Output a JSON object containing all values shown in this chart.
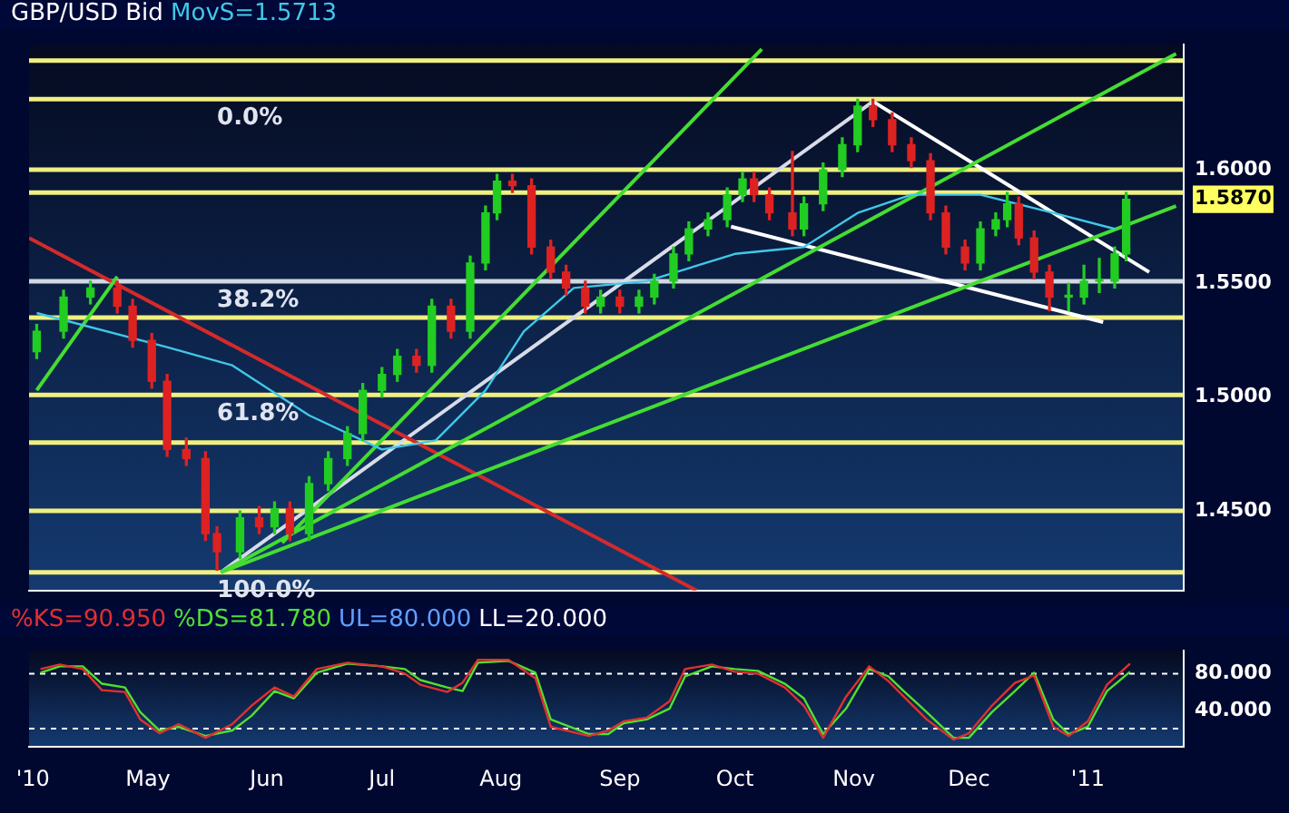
{
  "chart_data": [
    {
      "type": "candlestick",
      "title": "GBP/USD Bid",
      "legend": false,
      "tick_labels": "y",
      "x": [
        "2010-04-02",
        "2010-04-09",
        "2010-04-16",
        "2010-04-23",
        "2010-04-27",
        "2010-05-02",
        "2010-05-06",
        "2010-05-11",
        "2010-05-16",
        "2010-05-19",
        "2010-05-25",
        "2010-05-30",
        "2010-06-03",
        "2010-06-07",
        "2010-06-12",
        "2010-06-17",
        "2010-06-22",
        "2010-06-26",
        "2010-07-01",
        "2010-07-05",
        "2010-07-10",
        "2010-07-14",
        "2010-07-19",
        "2010-07-24",
        "2010-07-28",
        "2010-07-31",
        "2010-08-04",
        "2010-08-09",
        "2010-08-14",
        "2010-08-18",
        "2010-08-23",
        "2010-08-27",
        "2010-09-01",
        "2010-09-06",
        "2010-09-10",
        "2010-09-15",
        "2010-09-19",
        "2010-09-24",
        "2010-09-29",
        "2010-10-03",
        "2010-10-06",
        "2010-10-10",
        "2010-10-16",
        "2010-10-19",
        "2010-10-24",
        "2010-10-29",
        "2010-11-02",
        "2010-11-06",
        "2010-11-11",
        "2010-11-16",
        "2010-11-21",
        "2010-11-25",
        "2010-11-30",
        "2010-12-04",
        "2010-12-08",
        "2010-12-11",
        "2010-12-14",
        "2010-12-18",
        "2010-12-22",
        "2010-12-27",
        "2010-12-31",
        "2011-01-04",
        "2011-01-08",
        "2011-01-11"
      ],
      "ohlc": [
        [
          1.52,
          1.532,
          1.517,
          1.529
        ],
        [
          1.529,
          1.547,
          1.526,
          1.544
        ],
        [
          1.544,
          1.551,
          1.541,
          1.548
        ],
        [
          1.548,
          1.551,
          1.537,
          1.54
        ],
        [
          1.54,
          1.543,
          1.522,
          1.525
        ],
        [
          1.525,
          1.528,
          1.504,
          1.507
        ],
        [
          1.507,
          1.51,
          1.474,
          1.477
        ],
        [
          1.477,
          1.482,
          1.47,
          1.473
        ],
        [
          1.473,
          1.476,
          1.437,
          1.44
        ],
        [
          1.44,
          1.443,
          1.424,
          1.432
        ],
        [
          1.432,
          1.45,
          1.429,
          1.447
        ],
        [
          1.447,
          1.452,
          1.44,
          1.443
        ],
        [
          1.443,
          1.454,
          1.44,
          1.451
        ],
        [
          1.451,
          1.454,
          1.437,
          1.44
        ],
        [
          1.44,
          1.465,
          1.437,
          1.462
        ],
        [
          1.462,
          1.476,
          1.459,
          1.473
        ],
        [
          1.473,
          1.487,
          1.47,
          1.484
        ],
        [
          1.484,
          1.506,
          1.481,
          1.503
        ],
        [
          1.503,
          1.513,
          1.5,
          1.51
        ],
        [
          1.51,
          1.521,
          1.507,
          1.518
        ],
        [
          1.518,
          1.521,
          1.511,
          1.514
        ],
        [
          1.514,
          1.543,
          1.511,
          1.54
        ],
        [
          1.54,
          1.543,
          1.526,
          1.529
        ],
        [
          1.529,
          1.562,
          1.526,
          1.559
        ],
        [
          1.559,
          1.584,
          1.556,
          1.581
        ],
        [
          1.581,
          1.598,
          1.578,
          1.595
        ],
        [
          1.595,
          1.598,
          1.59,
          1.593
        ],
        [
          1.593,
          1.596,
          1.563,
          1.566
        ],
        [
          1.566,
          1.569,
          1.552,
          1.555
        ],
        [
          1.555,
          1.558,
          1.545,
          1.548
        ],
        [
          1.548,
          1.551,
          1.537,
          1.54
        ],
        [
          1.54,
          1.547,
          1.537,
          1.544
        ],
        [
          1.544,
          1.547,
          1.537,
          1.54
        ],
        [
          1.54,
          1.547,
          1.537,
          1.544
        ],
        [
          1.544,
          1.554,
          1.541,
          1.551
        ],
        [
          1.551,
          1.566,
          1.548,
          1.563
        ],
        [
          1.563,
          1.577,
          1.56,
          1.574
        ],
        [
          1.574,
          1.581,
          1.571,
          1.578
        ],
        [
          1.578,
          1.592,
          1.575,
          1.589
        ],
        [
          1.589,
          1.599,
          1.586,
          1.596
        ],
        [
          1.596,
          1.599,
          1.586,
          1.589
        ],
        [
          1.589,
          1.592,
          1.578,
          1.581
        ],
        [
          1.581,
          1.608,
          1.571,
          1.574
        ],
        [
          1.574,
          1.588,
          1.571,
          1.585
        ],
        [
          1.585,
          1.603,
          1.582,
          1.6
        ],
        [
          1.6,
          1.614,
          1.597,
          1.611
        ],
        [
          1.611,
          1.631,
          1.608,
          1.628
        ],
        [
          1.628,
          1.631,
          1.619,
          1.622
        ],
        [
          1.622,
          1.625,
          1.608,
          1.611
        ],
        [
          1.611,
          1.614,
          1.601,
          1.604
        ],
        [
          1.604,
          1.607,
          1.578,
          1.581
        ],
        [
          1.581,
          1.584,
          1.563,
          1.566
        ],
        [
          1.566,
          1.569,
          1.556,
          1.559
        ],
        [
          1.559,
          1.577,
          1.556,
          1.574
        ],
        [
          1.574,
          1.581,
          1.571,
          1.578
        ],
        [
          1.578,
          1.59,
          1.575,
          1.585
        ],
        [
          1.585,
          1.588,
          1.567,
          1.57
        ],
        [
          1.57,
          1.573,
          1.552,
          1.555
        ],
        [
          1.555,
          1.558,
          1.538,
          1.544
        ],
        [
          1.544,
          1.55,
          1.538,
          1.544
        ],
        [
          1.544,
          1.558,
          1.541,
          1.551
        ],
        [
          1.551,
          1.561,
          1.546,
          1.551
        ],
        [
          1.551,
          1.566,
          1.548,
          1.563
        ],
        [
          1.563,
          1.59,
          1.56,
          1.587
        ]
      ],
      "series": [
        {
          "name": "MovS=1.5713",
          "type": "line",
          "color": "#40c8e8",
          "x": [
            "2010-04-02",
            "2010-05-06",
            "2010-05-23",
            "2010-06-12",
            "2010-07-01",
            "2010-07-15",
            "2010-07-28",
            "2010-08-07",
            "2010-08-20",
            "2010-09-08",
            "2010-10-01",
            "2010-10-19",
            "2010-11-02",
            "2010-11-16",
            "2010-12-04",
            "2010-12-23",
            "2011-01-08"
          ],
          "values": [
            1.537,
            1.522,
            1.514,
            1.492,
            1.477,
            1.481,
            1.503,
            1.529,
            1.548,
            1.551,
            1.563,
            1.566,
            1.581,
            1.589,
            1.589,
            1.581,
            1.574
          ]
        },
        {
          "type": "line",
          "color": "#44dd33",
          "x": [
            "2010-04-02",
            "2010-04-23"
          ],
          "values": [
            1.503,
            1.553
          ]
        },
        {
          "type": "line",
          "color": "#44dd33",
          "x": [
            "2010-06-05",
            "2010-10-08"
          ],
          "values": [
            1.436,
            1.653
          ]
        },
        {
          "type": "line",
          "color": "#44dd33",
          "x": [
            "2010-05-20",
            "2011-01-24"
          ],
          "values": [
            1.423,
            1.651
          ]
        },
        {
          "type": "line",
          "color": "#44dd33",
          "x": [
            "2010-05-20",
            "2011-01-24"
          ],
          "values": [
            1.423,
            1.584
          ]
        },
        {
          "type": "line",
          "color": "#d42a2a",
          "x": [
            "2010-03-31",
            "2010-09-21"
          ],
          "values": [
            1.57,
            1.415
          ]
        },
        {
          "type": "line",
          "color": "#d8dce8",
          "x": [
            "2010-05-20",
            "2010-11-06"
          ],
          "values": [
            1.423,
            1.63
          ]
        },
        {
          "type": "line",
          "color": "#ffffff",
          "x": [
            "2010-11-06",
            "2011-01-17"
          ],
          "values": [
            1.63,
            1.555
          ]
        },
        {
          "type": "line",
          "color": "#ffffff",
          "x": [
            "2010-09-30",
            "2011-01-05"
          ],
          "values": [
            1.575,
            1.533
          ]
        }
      ],
      "xlim": [
        "2010-03-31",
        "2011-01-26"
      ],
      "ylim": [
        1.415,
        1.655
      ],
      "yticks": [
        {
          "value": 1.45,
          "label": "1.4500"
        },
        {
          "value": 1.5,
          "label": "1.5000"
        },
        {
          "value": 1.55,
          "label": "1.5500"
        },
        {
          "value": 1.587,
          "label": "1.5870"
        },
        {
          "value": 1.6,
          "label": "1.6000"
        }
      ],
      "annotations": [
        {
          "text": "0.0%",
          "x": "2010-05-19",
          "y": 1.631
        },
        {
          "text": "38.2%",
          "x": "2010-05-19",
          "y": 1.551
        },
        {
          "text": "61.8%",
          "x": "2010-05-19",
          "y": 1.501
        },
        {
          "text": "100.0%",
          "x": "2010-05-19",
          "y": 1.423
        }
      ],
      "ref_lines": [
        {
          "axis": "y",
          "value": 1.648,
          "color": "#f0f080"
        },
        {
          "axis": "y",
          "value": 1.631,
          "color": "#f0f080"
        },
        {
          "axis": "y",
          "value": 1.6,
          "color": "#f0f080"
        },
        {
          "axis": "y",
          "value": 1.59,
          "color": "#f0f080"
        },
        {
          "axis": "y",
          "value": 1.551,
          "color": "#d0d8e0"
        },
        {
          "axis": "y",
          "value": 1.535,
          "color": "#f0f080"
        },
        {
          "axis": "y",
          "value": 1.501,
          "color": "#f0f080"
        },
        {
          "axis": "y",
          "value": 1.48,
          "color": "#f0f080"
        },
        {
          "axis": "y",
          "value": 1.45,
          "color": "#f0f080"
        },
        {
          "axis": "y",
          "value": 1.423,
          "color": "#f0f080"
        }
      ]
    },
    {
      "type": "line",
      "legend": false,
      "x": [
        "2010-04-03",
        "2010-04-08",
        "2010-04-14",
        "2010-04-19",
        "2010-04-25",
        "2010-04-29",
        "2010-05-04",
        "2010-05-09",
        "2010-05-16",
        "2010-05-23",
        "2010-05-28",
        "2010-06-03",
        "2010-06-08",
        "2010-06-14",
        "2010-06-22",
        "2010-07-01",
        "2010-07-07",
        "2010-07-11",
        "2010-07-18",
        "2010-07-22",
        "2010-07-26",
        "2010-08-03",
        "2010-08-10",
        "2010-08-14",
        "2010-08-24",
        "2010-08-29",
        "2010-09-02",
        "2010-09-08",
        "2010-09-14",
        "2010-09-18",
        "2010-09-25",
        "2010-10-01",
        "2010-10-07",
        "2010-10-14",
        "2010-10-19",
        "2010-10-24",
        "2010-10-30",
        "2010-11-05",
        "2010-11-10",
        "2010-11-14",
        "2010-11-20",
        "2010-11-27",
        "2010-12-01",
        "2010-12-07",
        "2010-12-13",
        "2010-12-18",
        "2010-12-23",
        "2010-12-27",
        "2011-01-01",
        "2011-01-06",
        "2011-01-12"
      ],
      "series": [
        {
          "name": "%KS=90.950",
          "color": "#e03030",
          "values": [
            85,
            90,
            85,
            62,
            60,
            30,
            15,
            25,
            10,
            25,
            45,
            65,
            55,
            85,
            92,
            88,
            80,
            68,
            60,
            70,
            95,
            95,
            75,
            22,
            12,
            18,
            28,
            32,
            50,
            85,
            90,
            82,
            80,
            65,
            45,
            10,
            55,
            88,
            72,
            55,
            30,
            8,
            15,
            45,
            70,
            78,
            22,
            12,
            28,
            68,
            91
          ]
        },
        {
          "name": "%DS=81.780",
          "color": "#50e030",
          "values": [
            81,
            88,
            88,
            69,
            65,
            38,
            18,
            22,
            12,
            18,
            34,
            61,
            53,
            81,
            91,
            88,
            85,
            73,
            65,
            61,
            92,
            94,
            81,
            30,
            14,
            14,
            26,
            30,
            42,
            77,
            88,
            85,
            83,
            69,
            53,
            14,
            42,
            85,
            77,
            61,
            38,
            10,
            10,
            38,
            61,
            81,
            30,
            14,
            22,
            61,
            82
          ]
        }
      ],
      "xlim": [
        "2010-03-31",
        "2011-01-26"
      ],
      "xticks": [
        {
          "value": "2010-04-01",
          "label": "'10"
        },
        {
          "value": "2010-05-01",
          "label": "May"
        },
        {
          "value": "2010-06-01",
          "label": "Jun"
        },
        {
          "value": "2010-07-01",
          "label": "Jul"
        },
        {
          "value": "2010-08-01",
          "label": "Aug"
        },
        {
          "value": "2010-09-01",
          "label": "Sep"
        },
        {
          "value": "2010-10-01",
          "label": "Oct"
        },
        {
          "value": "2010-11-01",
          "label": "Nov"
        },
        {
          "value": "2010-12-01",
          "label": "Dec"
        },
        {
          "value": "2011-01-01",
          "label": "'11"
        }
      ],
      "ylim": [
        0,
        105
      ],
      "yticks": [
        {
          "value": 40,
          "label": "40.000"
        },
        {
          "value": 80,
          "label": "80.000"
        }
      ],
      "annotations": [
        "UL=80.000",
        "LL=20.000"
      ],
      "ref_lines": [
        {
          "axis": "y",
          "value": 80,
          "color": "#ffffff",
          "line_style": "dashed"
        },
        {
          "axis": "y",
          "value": 20,
          "color": "#ffffff",
          "line_style": "dashed"
        }
      ]
    }
  ]
}
